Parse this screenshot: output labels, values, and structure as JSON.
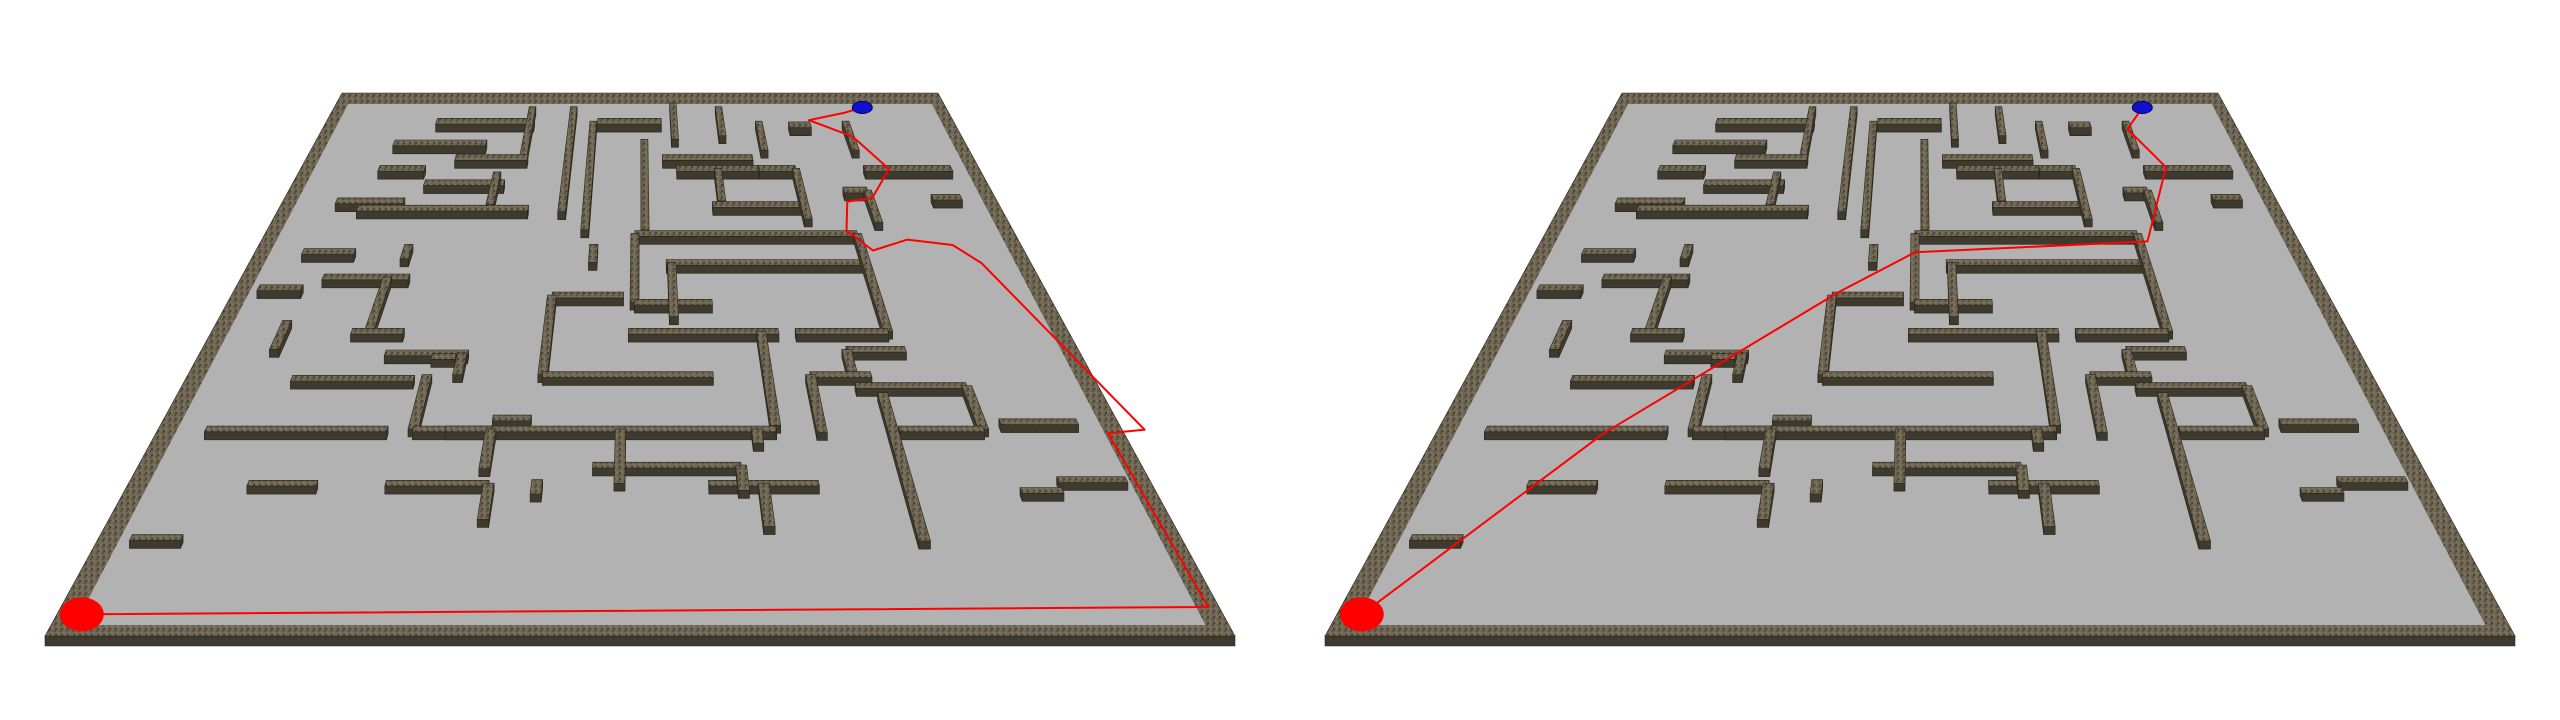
{
  "colors": {
    "background": "#ffffff",
    "floor": "#b2b2b2",
    "wall_top": "#6f6653",
    "wall_side": "#3f3a2e",
    "wall_edge": "#2a251c",
    "path": "#ff0000",
    "start_marker": "#ff0000",
    "goal_marker": "#1010d0"
  },
  "panels": [
    {
      "name": "maze-panel-left",
      "path": [
        [
          0.32,
          14.4
        ],
        [
          14.86,
          14.2
        ],
        [
          14.75,
          9.4
        ],
        [
          15.35,
          9.3
        ],
        [
          14.05,
          4.7
        ],
        [
          13.65,
          4.2
        ],
        [
          12.8,
          4.05
        ],
        [
          12.05,
          4.35
        ],
        [
          11.65,
          3.8
        ],
        [
          11.85,
          3.0
        ],
        [
          12.4,
          2.9
        ],
        [
          13.0,
          2.1
        ],
        [
          12.45,
          1.2
        ],
        [
          11.55,
          0.75
        ],
        [
          12.45,
          0.55
        ],
        [
          12.95,
          0.4
        ]
      ]
    },
    {
      "name": "maze-panel-right",
      "path": [
        [
          0.32,
          14.4
        ],
        [
          2.6,
          9.4
        ],
        [
          6.0,
          5.5
        ],
        [
          7.4,
          4.4
        ],
        [
          12.0,
          4.1
        ],
        [
          12.95,
          2.05
        ],
        [
          12.4,
          1.0
        ],
        [
          12.95,
          0.4
        ]
      ]
    }
  ],
  "markers": {
    "start": {
      "icon": "start-disc-icon",
      "color": "#ff0000",
      "cell": [
        0.32,
        14.4
      ]
    },
    "goal": {
      "icon": "goal-disc-icon",
      "color": "#1010d0",
      "cell": [
        12.95,
        0.4
      ]
    }
  }
}
